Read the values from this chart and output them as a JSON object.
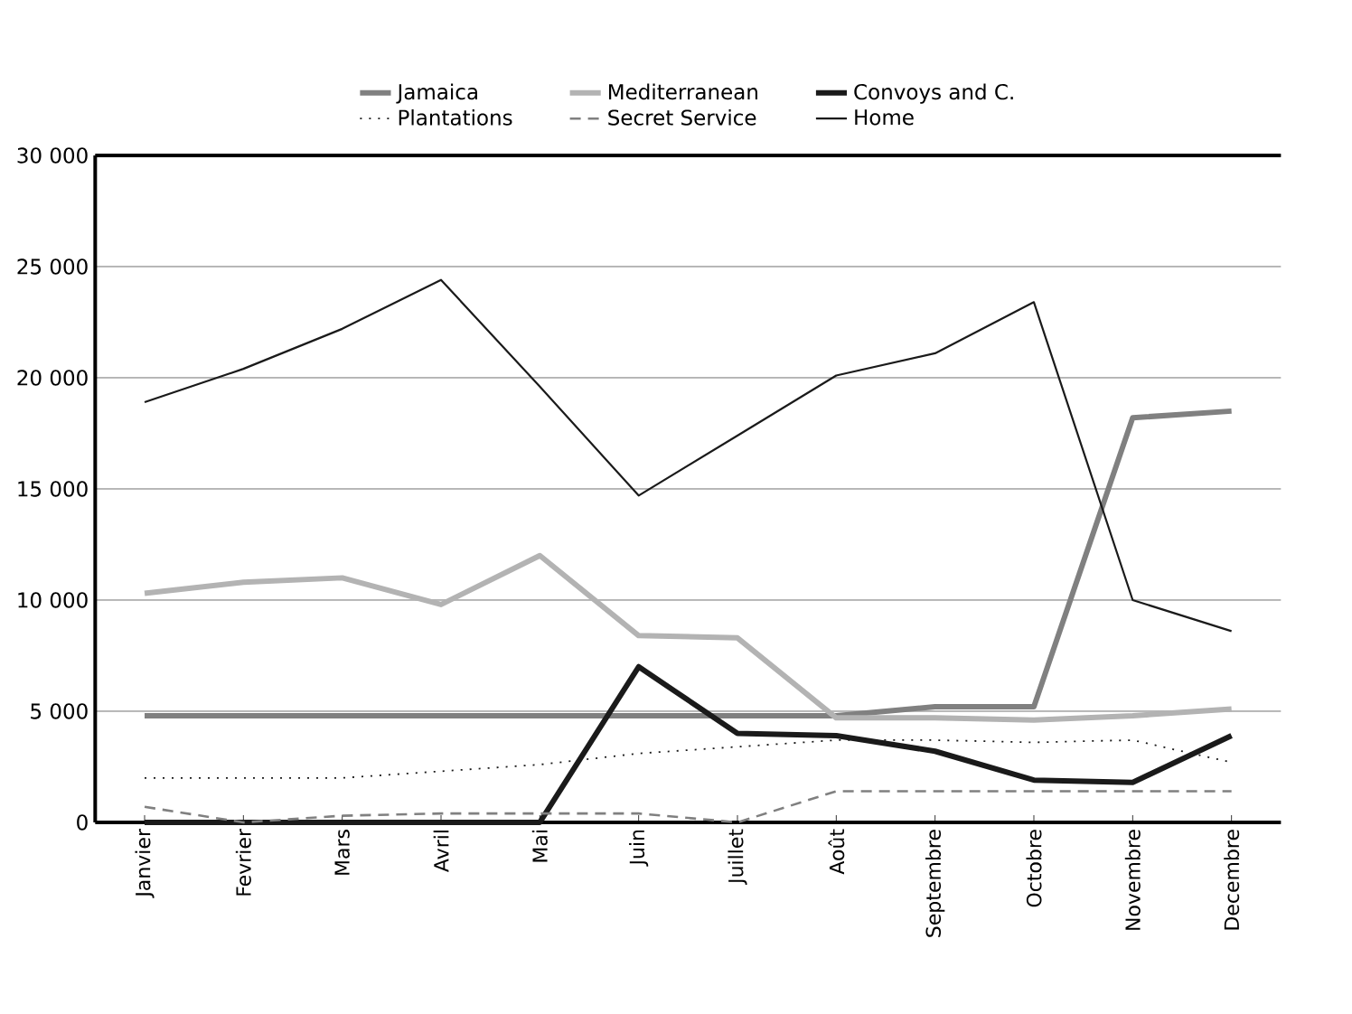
{
  "chart_data": {
    "type": "line",
    "categories": [
      "Janvier",
      "Fevrier",
      "Mars",
      "Avril",
      "Mai",
      "Juin",
      "Juillet",
      "Août",
      "Septembre",
      "Octobre",
      "Novembre",
      "Decembre"
    ],
    "series": [
      {
        "name": "Jamaica",
        "color": "#808080",
        "line_style": "solid",
        "values": [
          4800,
          4800,
          4800,
          4800,
          4800,
          4800,
          4800,
          4800,
          5200,
          5200,
          18200,
          18500
        ]
      },
      {
        "name": "Mediterranean",
        "color": "#b3b3b3",
        "line_style": "solid",
        "values": [
          10300,
          10800,
          11000,
          9800,
          12000,
          8400,
          8300,
          4700,
          4700,
          4600,
          4800,
          5100
        ]
      },
      {
        "name": "Convoys and C.",
        "color": "#1a1a1a",
        "line_style": "solid",
        "values": [
          0,
          0,
          0,
          0,
          0,
          7000,
          4000,
          3900,
          3200,
          1900,
          1800,
          3900
        ]
      },
      {
        "name": "Plantations",
        "color": "#1a1a1a",
        "line_style": "dotted",
        "values": [
          2000,
          2000,
          2000,
          2300,
          2600,
          3100,
          3400,
          3700,
          3700,
          3600,
          3700,
          2700
        ]
      },
      {
        "name": "Secret Service",
        "color": "#808080",
        "line_style": "dashed",
        "values": [
          700,
          0,
          300,
          400,
          400,
          400,
          0,
          1400,
          1400,
          1400,
          1400,
          1400
        ]
      },
      {
        "name": "Home",
        "color": "#1a1a1a",
        "line_style": "solid",
        "values": [
          18900,
          20400,
          22200,
          24400,
          19600,
          14700,
          17400,
          20100,
          21100,
          23400,
          10000,
          8600
        ]
      }
    ],
    "ylim": [
      0,
      30000
    ],
    "yticks": [
      {
        "value": 0,
        "label": "0"
      },
      {
        "value": 5000,
        "label": "5 000"
      },
      {
        "value": 10000,
        "label": "10 000"
      },
      {
        "value": 15000,
        "label": "15 000"
      },
      {
        "value": 20000,
        "label": "20 000"
      },
      {
        "value": 25000,
        "label": "25 000"
      },
      {
        "value": 30000,
        "label": "30 000"
      }
    ],
    "grid": "y",
    "legend": "top",
    "marker": "none"
  }
}
